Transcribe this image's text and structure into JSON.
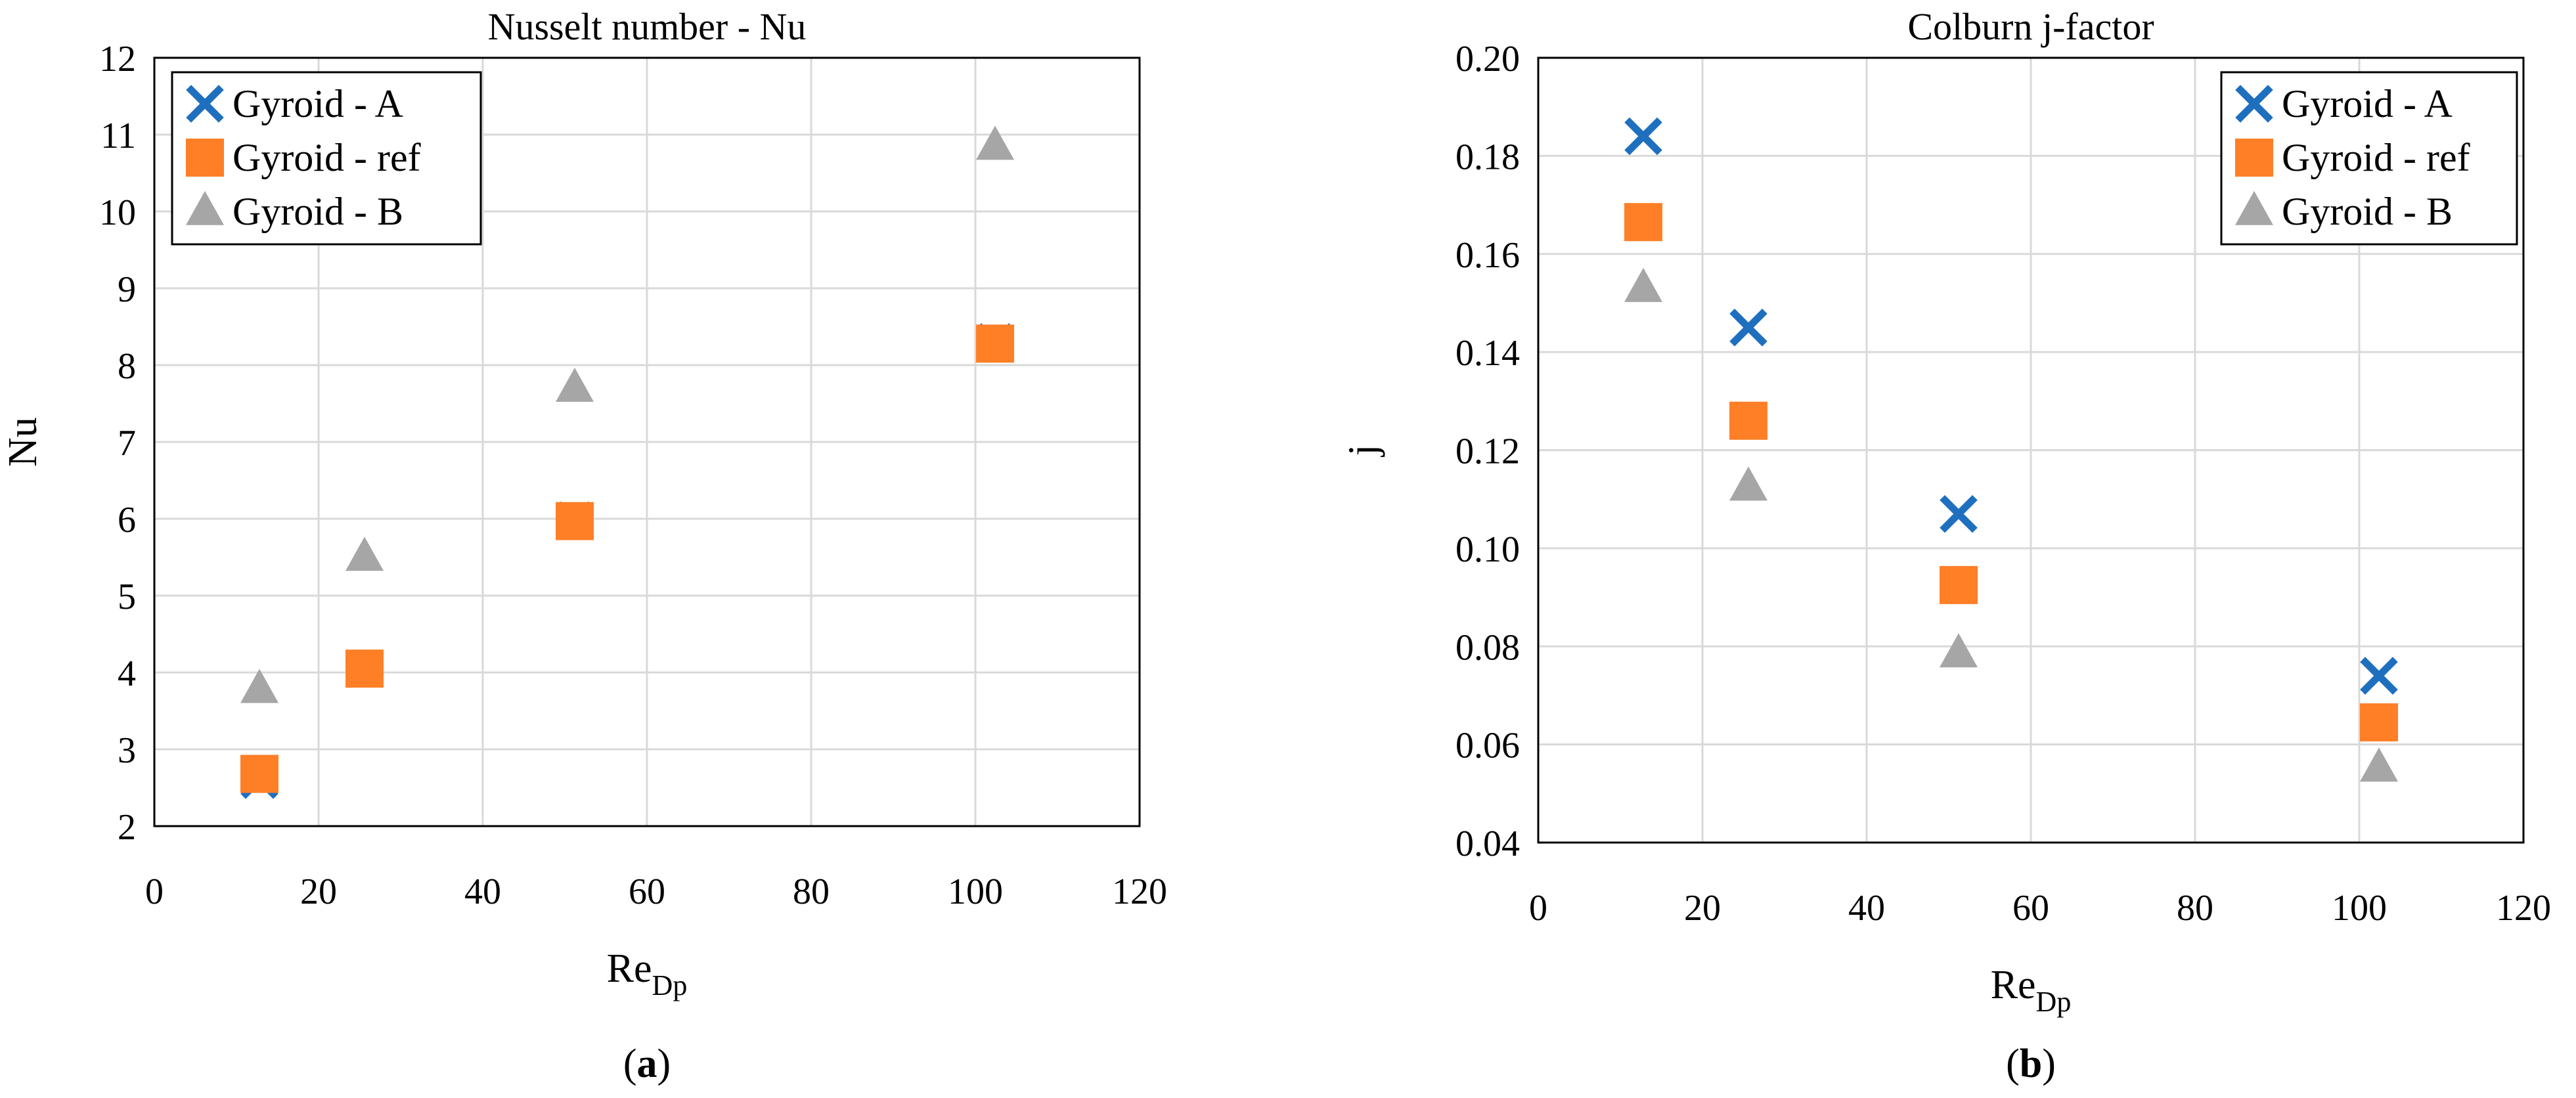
{
  "chart_data": [
    {
      "type": "scatter",
      "title": "Nusselt number - Nu",
      "xlabel": "Re",
      "xlabel_sub": "Dp",
      "ylabel": "Nu",
      "xlim": [
        0,
        120
      ],
      "ylim": [
        2,
        12
      ],
      "xticks": [
        "0",
        "20",
        "40",
        "60",
        "80",
        "100",
        "120"
      ],
      "yticks": [
        "2",
        "3",
        "4",
        "5",
        "6",
        "7",
        "8",
        "9",
        "10",
        "11",
        "12"
      ],
      "grid": true,
      "legend_position": "top-left",
      "panel_label": "a",
      "series": [
        {
          "name": "Gyroid - A",
          "marker": "x",
          "color": "#1f6fbf",
          "x": [
            12.8,
            25.6,
            51.2,
            102.4
          ],
          "y": [
            2.6,
            4.05,
            5.98,
            8.3
          ]
        },
        {
          "name": "Gyroid - ref",
          "marker": "square",
          "color": "#ff7f27",
          "x": [
            12.8,
            25.6,
            51.2,
            102.4
          ],
          "y": [
            2.68,
            4.05,
            5.97,
            8.28
          ]
        },
        {
          "name": "Gyroid - B",
          "marker": "triangle",
          "color": "#a6a6a6",
          "x": [
            12.8,
            25.6,
            51.2,
            102.4
          ],
          "y": [
            3.78,
            5.5,
            7.7,
            10.85
          ]
        }
      ]
    },
    {
      "type": "scatter",
      "title": "Colburn j-factor",
      "xlabel": "Re",
      "xlabel_sub": "Dp",
      "ylabel": "j",
      "xlim": [
        0,
        120
      ],
      "ylim": [
        0.04,
        0.2
      ],
      "xticks": [
        "0",
        "20",
        "40",
        "60",
        "80",
        "100",
        "120"
      ],
      "yticks": [
        "0.04",
        "0.06",
        "0.08",
        "0.10",
        "0.12",
        "0.14",
        "0.16",
        "0.18",
        "0.20"
      ],
      "grid": true,
      "legend_position": "top-right",
      "panel_label": "b",
      "series": [
        {
          "name": "Gyroid - A",
          "marker": "x",
          "color": "#1f6fbf",
          "x": [
            12.8,
            25.6,
            51.2,
            102.4
          ],
          "y": [
            0.184,
            0.145,
            0.107,
            0.074
          ]
        },
        {
          "name": "Gyroid - ref",
          "marker": "square",
          "color": "#ff7f27",
          "x": [
            12.8,
            25.6,
            51.2,
            102.4
          ],
          "y": [
            0.1665,
            0.126,
            0.0925,
            0.0645
          ]
        },
        {
          "name": "Gyroid - B",
          "marker": "triangle",
          "color": "#a6a6a6",
          "x": [
            12.8,
            25.6,
            51.2,
            102.4
          ],
          "y": [
            0.153,
            0.1125,
            0.0785,
            0.0552
          ]
        }
      ]
    }
  ]
}
